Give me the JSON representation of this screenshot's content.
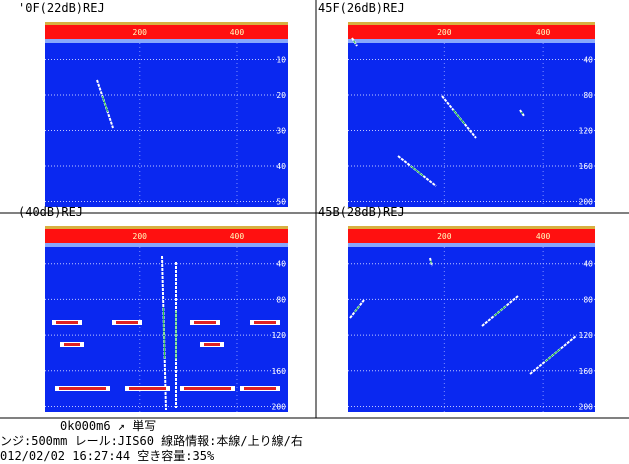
{
  "panels": [
    {
      "title": "'0F(22dB)REJ",
      "x_ticks": [
        "200",
        "400"
      ],
      "y_ticks": [
        "10",
        "20",
        "30",
        "40",
        "50"
      ]
    },
    {
      "title": "45F(26dB)REJ",
      "x_ticks": [
        "200",
        "400"
      ],
      "y_ticks": [
        "40",
        "80",
        "120",
        "160",
        "200"
      ]
    },
    {
      "title": "(40dB)REJ",
      "x_ticks": [
        "200",
        "400"
      ],
      "y_ticks": [
        "40",
        "80",
        "120",
        "160",
        "200"
      ]
    },
    {
      "title": "45B(28dB)REJ",
      "x_ticks": [
        "200",
        "400"
      ],
      "y_ticks": [
        "40",
        "80",
        "120",
        "160",
        "200"
      ]
    }
  ],
  "status": {
    "line1": "0k000m6 ↗   単写",
    "line2": "ンジ:500mm     レール:JIS60  線路情報:本線/上り線/右",
    "line3": "012/02/02 16:27:44   空き容量:35%"
  }
}
